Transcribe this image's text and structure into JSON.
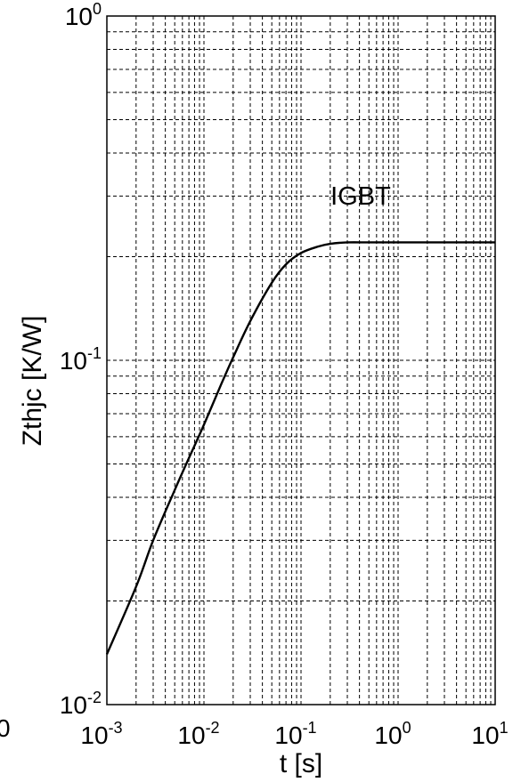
{
  "chart_data": {
    "type": "line",
    "title": "",
    "xlabel": "t [s]",
    "ylabel": "Zthjc [K/W]",
    "xscale": "log",
    "yscale": "log",
    "xlim": [
      0.001,
      10
    ],
    "ylim": [
      0.01,
      1
    ],
    "grid": true,
    "x_ticks": [
      {
        "base": "10",
        "exp": "-3"
      },
      {
        "base": "10",
        "exp": "-2"
      },
      {
        "base": "10",
        "exp": "-1"
      },
      {
        "base": "10",
        "exp": "0"
      },
      {
        "base": "10",
        "exp": "1"
      }
    ],
    "y_ticks": [
      {
        "base": "10",
        "exp": "-2"
      },
      {
        "base": "10",
        "exp": "-1"
      },
      {
        "base": "10",
        "exp": "0"
      }
    ],
    "left_edge_label": "0",
    "annotations": [
      {
        "text": "IGBT"
      }
    ],
    "series": [
      {
        "name": "IGBT",
        "x": [
          0.001,
          0.002,
          0.003,
          0.005,
          0.007,
          0.01,
          0.015,
          0.02,
          0.03,
          0.05,
          0.07,
          0.1,
          0.15,
          0.2,
          0.3,
          0.5,
          1,
          2,
          5,
          10
        ],
        "y": [
          0.014,
          0.022,
          0.03,
          0.042,
          0.052,
          0.065,
          0.085,
          0.102,
          0.13,
          0.168,
          0.19,
          0.205,
          0.214,
          0.218,
          0.22,
          0.22,
          0.22,
          0.22,
          0.22,
          0.22
        ]
      }
    ]
  }
}
